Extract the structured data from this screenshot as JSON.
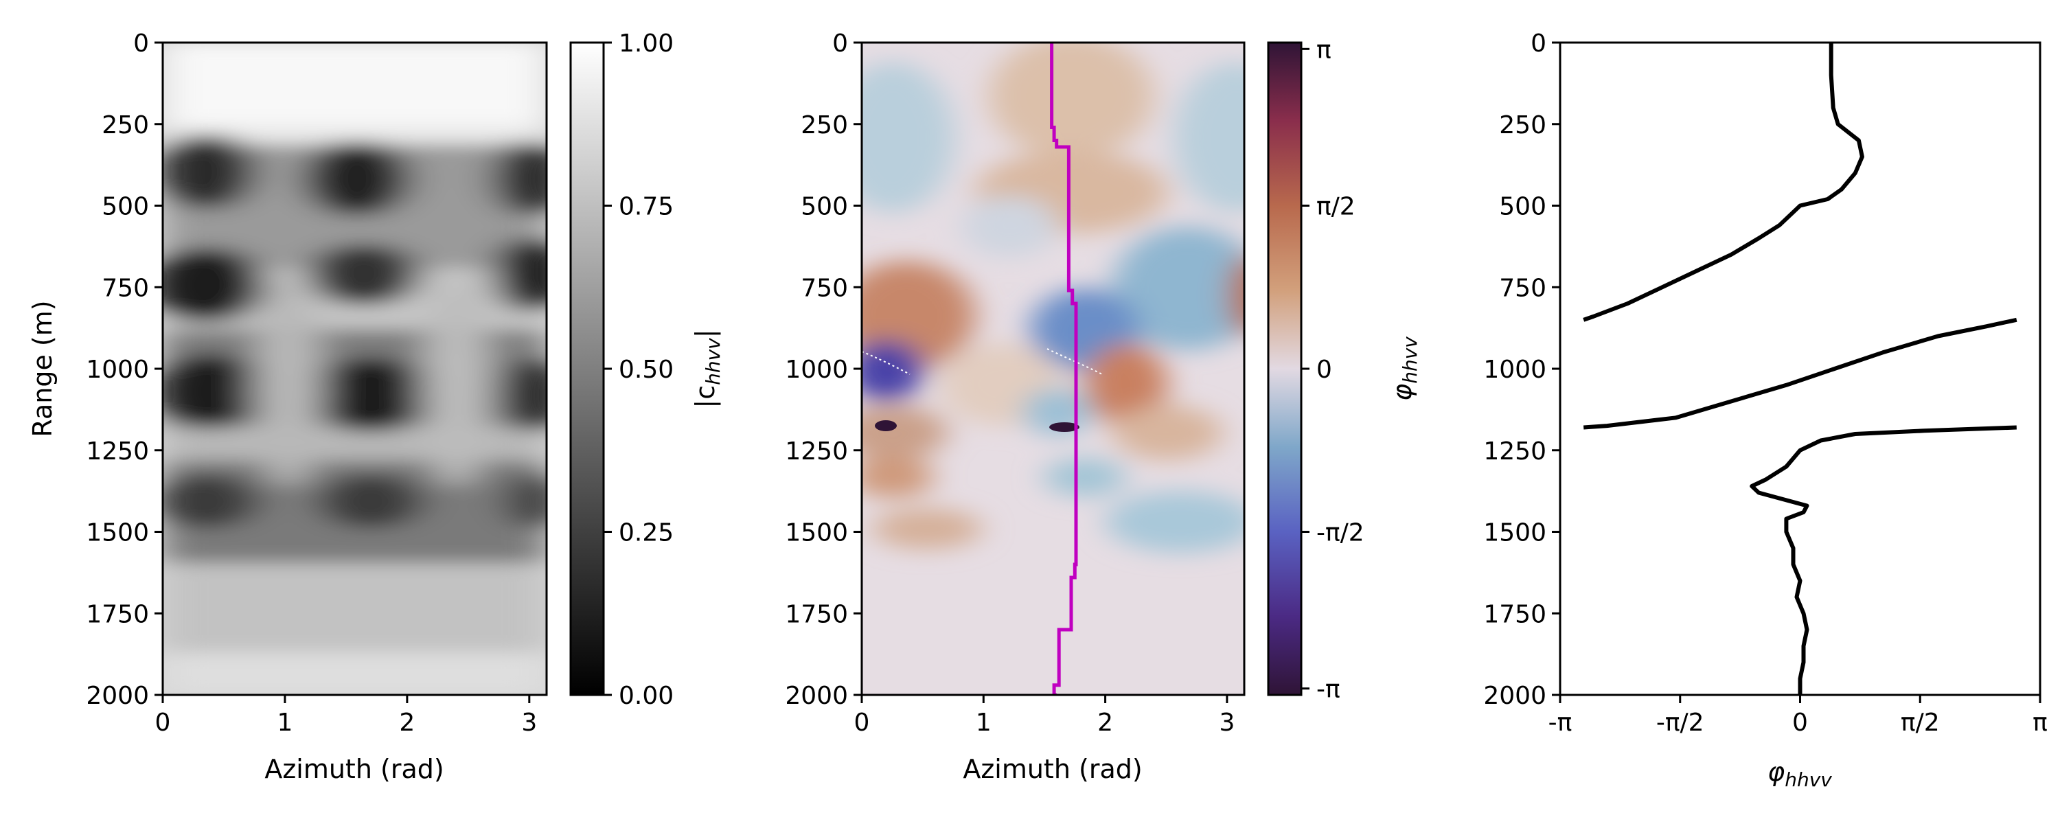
{
  "chart_data": [
    {
      "type": "heatmap",
      "panel": "magnitude",
      "xlabel": "Azimuth (rad)",
      "ylabel": "Range (m)",
      "xlim": [
        0,
        3.14159
      ],
      "ylim": [
        2000,
        0
      ],
      "xticks": [
        0,
        1,
        2,
        3
      ],
      "yticks": [
        0,
        250,
        500,
        750,
        1000,
        1250,
        1500,
        1750,
        2000
      ],
      "colorbar": {
        "label": "|c_hhvv|",
        "range": [
          0,
          1
        ],
        "ticks": [
          "0.00",
          "0.25",
          "0.50",
          "0.75",
          "1.00"
        ],
        "colormap": "gray"
      },
      "dark_bands_range_m": [
        400,
        500,
        800,
        900,
        1180,
        1380
      ],
      "dark_azimuth_centers_rad": [
        0.2,
        0.6,
        1.6,
        2.0,
        3.05
      ]
    },
    {
      "type": "heatmap",
      "panel": "phase",
      "xlabel": "Azimuth (rad)",
      "ylabel": "",
      "xlim": [
        0,
        3.14159
      ],
      "ylim": [
        2000,
        0
      ],
      "xticks": [
        0,
        1,
        2,
        3
      ],
      "yticks": [
        0,
        250,
        500,
        750,
        1000,
        1250,
        1500,
        1750,
        2000
      ],
      "colorbar": {
        "label": "φhhvv",
        "range": [
          -3.14159,
          3.14159
        ],
        "ticks": [
          "π",
          "π/2",
          "0",
          "-π/2",
          "-π"
        ],
        "colormap": "twilight_shifted"
      },
      "trace_color": "#c000c0",
      "trace": {
        "range_m": [
          0,
          240,
          260,
          300,
          320,
          500,
          700,
          760,
          800,
          1000,
          1200,
          1500,
          1600,
          1640,
          1780,
          1800,
          1950,
          1970,
          2000
        ],
        "azimuth_rad": [
          1.56,
          1.56,
          1.58,
          1.6,
          1.7,
          1.7,
          1.7,
          1.73,
          1.76,
          1.76,
          1.76,
          1.76,
          1.75,
          1.72,
          1.72,
          1.62,
          1.62,
          1.58,
          1.6
        ]
      }
    },
    {
      "type": "line",
      "panel": "phase-profile",
      "xlabel": "φhhvv",
      "ylabel": "",
      "xlim": [
        -3.14159,
        3.14159
      ],
      "ylim": [
        2000,
        0
      ],
      "xticks": [
        "-π",
        "-π/2",
        "0",
        "π/2",
        "π"
      ],
      "yticks": [
        0,
        250,
        500,
        750,
        1000,
        1250,
        1500,
        1750,
        2000
      ],
      "series": [
        {
          "range_m": [
            0,
            100,
            200,
            250,
            300,
            350,
            400,
            450,
            480,
            500,
            520,
            560,
            600,
            650,
            700,
            750,
            800,
            840,
            850
          ],
          "phase_rad": [
            0.45,
            0.45,
            0.48,
            0.55,
            0.85,
            0.9,
            0.8,
            0.6,
            0.4,
            0.0,
            -0.1,
            -0.3,
            -0.6,
            -1.0,
            -1.5,
            -2.0,
            -2.5,
            -3.0,
            -3.14
          ]
        },
        {
          "range_m": [
            850,
            870,
            900,
            950,
            1000,
            1050,
            1100,
            1150,
            1175,
            1180
          ],
          "phase_rad": [
            3.14,
            2.7,
            2.0,
            1.2,
            0.5,
            -0.2,
            -1.0,
            -1.8,
            -2.8,
            -3.14
          ]
        },
        {
          "range_m": [
            1180,
            1190,
            1200,
            1220,
            1250,
            1300,
            1340,
            1360,
            1380,
            1420,
            1440,
            1460,
            1500,
            1550,
            1600,
            1650,
            1700,
            1750,
            1800,
            1850,
            1900,
            1950,
            2000
          ],
          "phase_rad": [
            3.14,
            1.8,
            0.8,
            0.3,
            0.0,
            -0.2,
            -0.5,
            -0.7,
            -0.6,
            0.1,
            0.05,
            -0.2,
            -0.2,
            -0.1,
            -0.1,
            0.0,
            -0.05,
            0.05,
            0.1,
            0.05,
            0.05,
            0.0,
            0.0
          ]
        }
      ]
    }
  ]
}
